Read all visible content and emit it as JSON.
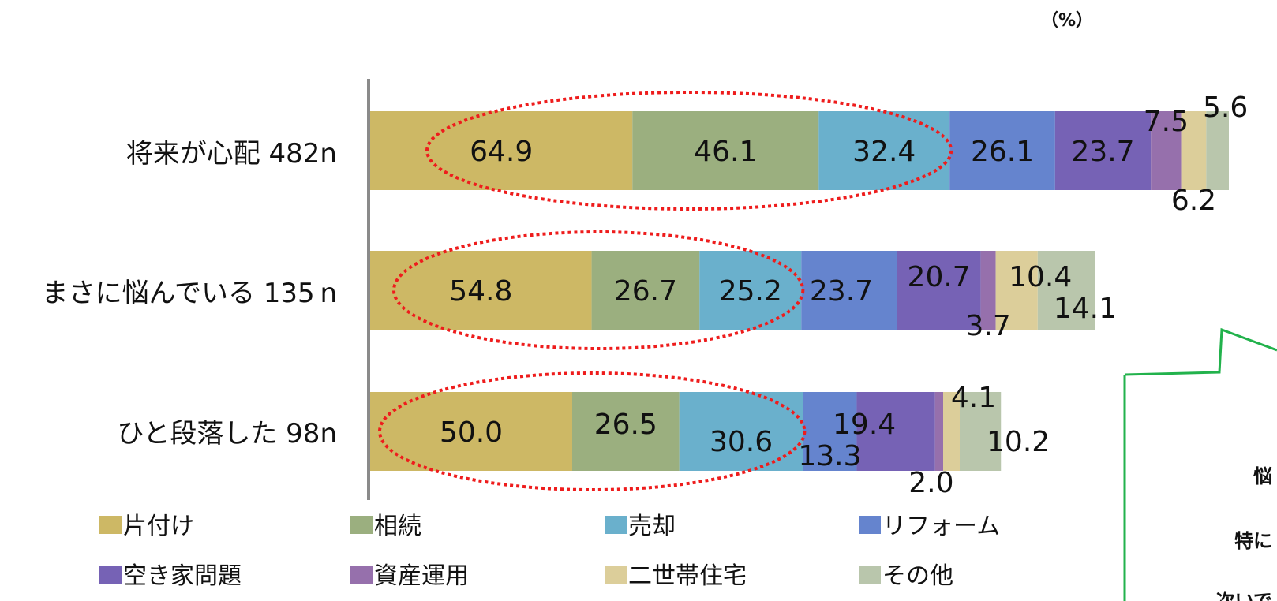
{
  "chart_data": {
    "type": "bar",
    "orientation": "horizontal",
    "stacked": true,
    "unit": "（%）",
    "categories": [
      "将来が心配 482n",
      "まさに悩んでいる 135 n",
      "ひと段落した 98n"
    ],
    "series": [
      {
        "name": "片付け",
        "color": "#CDB865",
        "values": [
          64.9,
          54.8,
          50.0
        ]
      },
      {
        "name": "相続",
        "color": "#9BAF7F",
        "values": [
          46.1,
          26.7,
          26.5
        ]
      },
      {
        "name": "売却",
        "color": "#6AB0CC",
        "values": [
          32.4,
          25.2,
          30.6
        ]
      },
      {
        "name": "リフォーム",
        "color": "#6584CE",
        "values": [
          26.1,
          23.7,
          13.3
        ]
      },
      {
        "name": "空き家問題",
        "color": "#7662B5",
        "values": [
          23.7,
          20.7,
          19.4
        ]
      },
      {
        "name": "資産運用",
        "color": "#9670AC",
        "values": [
          7.5,
          3.7,
          2.0
        ]
      },
      {
        "name": "二世帯住宅",
        "color": "#DCCE9A",
        "values": [
          6.2,
          10.4,
          4.1
        ]
      },
      {
        "name": "その他",
        "color": "#B9C6AC",
        "values": [
          5.6,
          14.1,
          10.2
        ]
      }
    ],
    "legend_position": "bottom",
    "grid": false,
    "annotations": [
      "red dotted ellipse around 片付け, 相続, 売却 segments of each bar"
    ]
  },
  "callout": {
    "lines": [
      "悩",
      "特に",
      "次いで"
    ]
  }
}
